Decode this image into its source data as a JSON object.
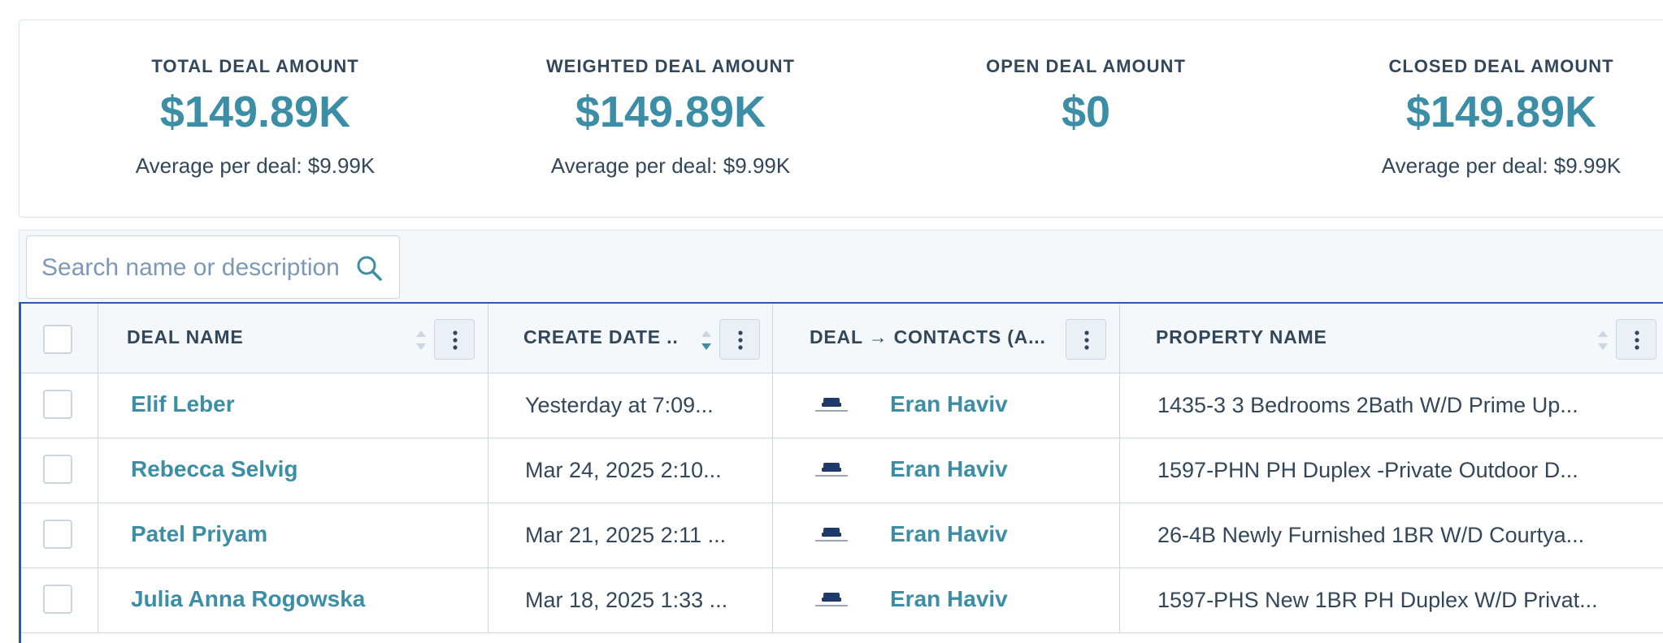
{
  "summary": {
    "metrics": [
      {
        "label": "TOTAL DEAL AMOUNT",
        "value": "$149.89K",
        "avg": "Average per deal: $9.99K"
      },
      {
        "label": "WEIGHTED DEAL AMOUNT",
        "value": "$149.89K",
        "avg": "Average per deal: $9.99K"
      },
      {
        "label": "OPEN DEAL AMOUNT",
        "value": "$0",
        "avg": ""
      },
      {
        "label": "CLOSED DEAL AMOUNT",
        "value": "$149.89K",
        "avg": "Average per deal: $9.99K"
      }
    ]
  },
  "search": {
    "placeholder": "Search name or description",
    "value": ""
  },
  "table": {
    "columns": [
      {
        "label": "DEAL NAME"
      },
      {
        "label": "CREATE DATE ..."
      },
      {
        "label": "DEAL → CONTACTS (A..."
      },
      {
        "label": "PROPERTY NAME"
      }
    ],
    "rows": [
      {
        "deal": "Elif Leber",
        "date": "Yesterday at 7:09...",
        "contact": "Eran Haviv",
        "property": "1435-3 3 Bedrooms 2Bath W/D Prime Up..."
      },
      {
        "deal": "Rebecca Selvig",
        "date": "Mar 24, 2025 2:10...",
        "contact": "Eran Haviv",
        "property": "1597-PHN PH Duplex -Private Outdoor D..."
      },
      {
        "deal": "Patel Priyam",
        "date": "Mar 21, 2025 2:11 ...",
        "contact": "Eran Haviv",
        "property": "26-4B Newly Furnished 1BR W/D Courtya..."
      },
      {
        "deal": "Julia Anna Rogowska",
        "date": "Mar 18, 2025 1:33 ...",
        "contact": "Eran Haviv",
        "property": "1597-PHS New 1BR PH Duplex W/D Privat..."
      }
    ]
  },
  "colors": {
    "accent": "#3b8ea5",
    "text": "#33475b",
    "border": "#cbd6e2",
    "focus": "#2d5aa8"
  },
  "icons": {
    "search": "search-icon",
    "sort": "sort-icon",
    "menu": "vertical-dots-icon",
    "logo": "company-logo-icon"
  }
}
